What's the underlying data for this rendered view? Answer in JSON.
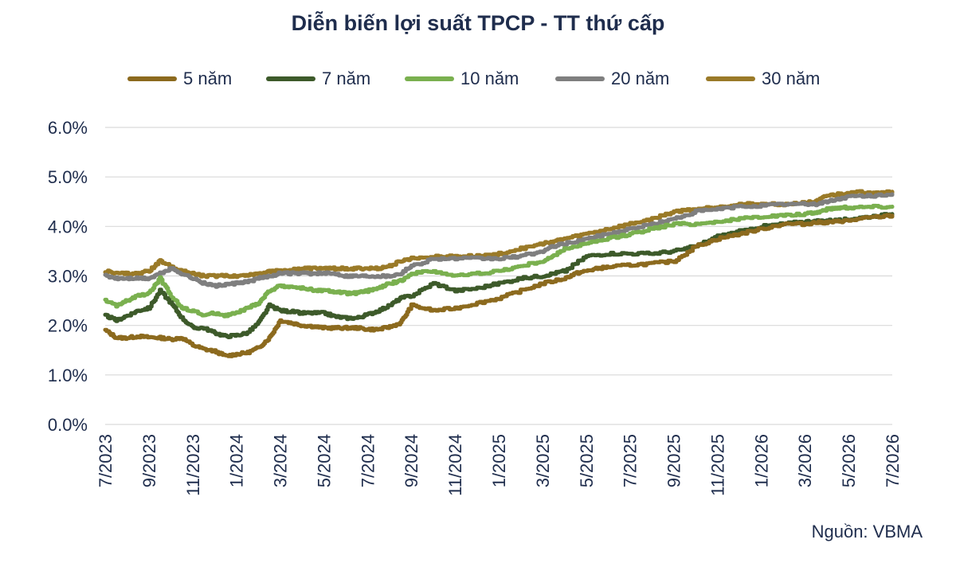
{
  "source": "Nguồn: VBMA",
  "chart_data": {
    "type": "line",
    "title": "Diễn biến lợi suất TPCP - TT thứ cấp",
    "xlabel": "",
    "ylabel": "",
    "ylim": [
      0,
      6
    ],
    "y_ticks": [
      "0.0%",
      "1.0%",
      "2.0%",
      "3.0%",
      "4.0%",
      "5.0%",
      "6.0%"
    ],
    "x_ticks": [
      "7/2023",
      "9/2023",
      "11/2023",
      "1/2024",
      "3/2024",
      "5/2024",
      "7/2024",
      "9/2024",
      "11/2024",
      "1/2025",
      "3/2025",
      "5/2025",
      "7/2025",
      "9/2025",
      "11/2025",
      "1/2026",
      "3/2026",
      "5/2026",
      "7/2026"
    ],
    "x_range_months": [
      0,
      36
    ],
    "grid": "horizontal",
    "legend_position": "top",
    "series": [
      {
        "name": "5 năm",
        "color": "#8c6a1e",
        "x": [
          0,
          0.5,
          1,
          1.5,
          2,
          2.5,
          3,
          3.5,
          4,
          4.5,
          5,
          5.5,
          6,
          6.5,
          7,
          7.5,
          8,
          8.5,
          9,
          9.5,
          10,
          10.5,
          11,
          11.5,
          12,
          12.5,
          13,
          13.5,
          14,
          15,
          16,
          17,
          18,
          19,
          20,
          21,
          21.5,
          22,
          22.5,
          23,
          24,
          25,
          26,
          27,
          28,
          29,
          30,
          31,
          32,
          32.5,
          33,
          33.5,
          34,
          35,
          36
        ],
        "values": [
          1.9,
          1.75,
          1.75,
          1.78,
          1.76,
          1.75,
          1.72,
          1.75,
          1.6,
          1.52,
          1.48,
          1.38,
          1.42,
          1.45,
          1.55,
          1.75,
          2.1,
          2.05,
          2.0,
          1.98,
          1.95,
          1.95,
          1.95,
          1.95,
          1.92,
          1.92,
          1.97,
          2.05,
          2.4,
          2.3,
          2.35,
          2.45,
          2.55,
          2.7,
          2.85,
          2.95,
          3.05,
          3.1,
          3.15,
          3.18,
          3.22,
          3.25,
          3.3,
          3.6,
          3.75,
          3.85,
          3.95,
          4.05,
          4.05,
          4.08,
          4.08,
          4.1,
          4.12,
          4.18,
          4.22
        ]
      },
      {
        "name": "7 năm",
        "color": "#3d5a2a",
        "x": [
          0,
          0.5,
          1,
          1.5,
          2,
          2.5,
          3,
          3.5,
          4,
          4.5,
          5,
          5.5,
          6,
          6.5,
          7,
          7.5,
          8,
          8.5,
          9,
          9.5,
          10,
          10.5,
          11,
          11.5,
          12,
          12.5,
          13,
          13.5,
          14,
          15,
          16,
          17,
          18,
          19,
          20,
          20.5,
          21,
          22,
          23,
          24,
          25,
          26,
          27,
          28,
          29,
          30,
          31,
          32,
          32.5,
          33,
          33.5,
          34,
          35,
          36
        ],
        "values": [
          2.2,
          2.1,
          2.2,
          2.3,
          2.35,
          2.7,
          2.45,
          2.15,
          1.95,
          1.95,
          1.85,
          1.78,
          1.8,
          1.85,
          2.05,
          2.4,
          2.3,
          2.28,
          2.25,
          2.25,
          2.25,
          2.18,
          2.15,
          2.15,
          2.22,
          2.3,
          2.4,
          2.55,
          2.6,
          2.85,
          2.7,
          2.75,
          2.85,
          2.95,
          3.0,
          3.05,
          3.1,
          3.4,
          3.45,
          3.45,
          3.45,
          3.5,
          3.6,
          3.8,
          3.9,
          4.0,
          4.05,
          4.1,
          4.1,
          4.12,
          4.12,
          4.15,
          4.2,
          4.25
        ]
      },
      {
        "name": "10 năm",
        "color": "#7ab04f",
        "x": [
          0,
          0.5,
          1,
          1.5,
          2,
          2.5,
          3,
          3.5,
          4,
          4.5,
          5,
          5.5,
          6,
          6.5,
          7,
          7.5,
          8,
          8.5,
          9,
          9.5,
          10,
          10.5,
          11,
          11.5,
          12,
          12.5,
          13,
          13.5,
          14,
          15,
          16,
          17,
          18,
          19,
          20,
          20.5,
          21,
          22,
          23,
          24,
          25,
          26,
          27,
          28,
          29,
          30,
          31,
          32,
          32.5,
          33,
          33.5,
          34,
          35,
          36
        ],
        "values": [
          2.5,
          2.4,
          2.5,
          2.6,
          2.65,
          2.95,
          2.6,
          2.35,
          2.3,
          2.2,
          2.25,
          2.2,
          2.25,
          2.35,
          2.45,
          2.7,
          2.8,
          2.78,
          2.75,
          2.72,
          2.7,
          2.68,
          2.65,
          2.65,
          2.7,
          2.75,
          2.85,
          2.9,
          3.05,
          3.1,
          3.0,
          3.05,
          3.1,
          3.2,
          3.3,
          3.4,
          3.55,
          3.65,
          3.75,
          3.85,
          3.95,
          4.05,
          4.05,
          4.1,
          4.15,
          4.2,
          4.22,
          4.25,
          4.28,
          4.35,
          4.38,
          4.38,
          4.4,
          4.4
        ]
      },
      {
        "name": "20 năm",
        "color": "#7f7f7f",
        "x": [
          0,
          0.5,
          1,
          1.5,
          2,
          2.5,
          3,
          3.5,
          4,
          4.5,
          5,
          5.5,
          6,
          6.5,
          7,
          7.5,
          8,
          8.5,
          9,
          9.5,
          10,
          10.5,
          11,
          11.5,
          12,
          12.5,
          13,
          13.5,
          14,
          15,
          16,
          17,
          18,
          19,
          20,
          20.5,
          21,
          22,
          23,
          24,
          25,
          26,
          27,
          28,
          29,
          30,
          31,
          32,
          32.5,
          33,
          33.5,
          34,
          35,
          36
        ],
        "values": [
          3.0,
          2.95,
          2.95,
          2.95,
          2.95,
          3.05,
          3.15,
          3.05,
          2.95,
          2.85,
          2.8,
          2.82,
          2.85,
          2.88,
          2.95,
          3.0,
          3.05,
          3.05,
          3.05,
          3.05,
          3.05,
          3.05,
          3.0,
          3.0,
          3.0,
          3.0,
          3.0,
          3.05,
          3.2,
          3.35,
          3.35,
          3.35,
          3.35,
          3.4,
          3.5,
          3.6,
          3.65,
          3.75,
          3.85,
          3.95,
          4.05,
          4.15,
          4.3,
          4.35,
          4.4,
          4.42,
          4.45,
          4.45,
          4.45,
          4.5,
          4.55,
          4.6,
          4.62,
          4.65
        ]
      },
      {
        "name": "30 năm",
        "color": "#9a7a28",
        "x": [
          0,
          0.5,
          1,
          1.5,
          2,
          2.5,
          3,
          3.5,
          4,
          4.5,
          5,
          5.5,
          6,
          6.5,
          7,
          7.5,
          8,
          8.5,
          9,
          9.5,
          10,
          10.5,
          11,
          11.5,
          12,
          12.5,
          13,
          13.5,
          14,
          15,
          16,
          17,
          18,
          19,
          20,
          20.5,
          21,
          22,
          23,
          24,
          25,
          26,
          27,
          28,
          29,
          30,
          31,
          32,
          32.5,
          33,
          33.5,
          34,
          35,
          36
        ],
        "values": [
          3.1,
          3.05,
          3.05,
          3.05,
          3.1,
          3.3,
          3.2,
          3.1,
          3.05,
          3.0,
          3.0,
          3.0,
          3.0,
          3.02,
          3.05,
          3.1,
          3.1,
          3.12,
          3.15,
          3.15,
          3.15,
          3.15,
          3.15,
          3.15,
          3.15,
          3.15,
          3.2,
          3.3,
          3.35,
          3.4,
          3.4,
          3.4,
          3.45,
          3.55,
          3.65,
          3.7,
          3.75,
          3.85,
          3.95,
          4.05,
          4.15,
          4.3,
          4.35,
          4.4,
          4.45,
          4.45,
          4.45,
          4.48,
          4.5,
          4.62,
          4.65,
          4.68,
          4.7,
          4.7
        ]
      }
    ]
  }
}
